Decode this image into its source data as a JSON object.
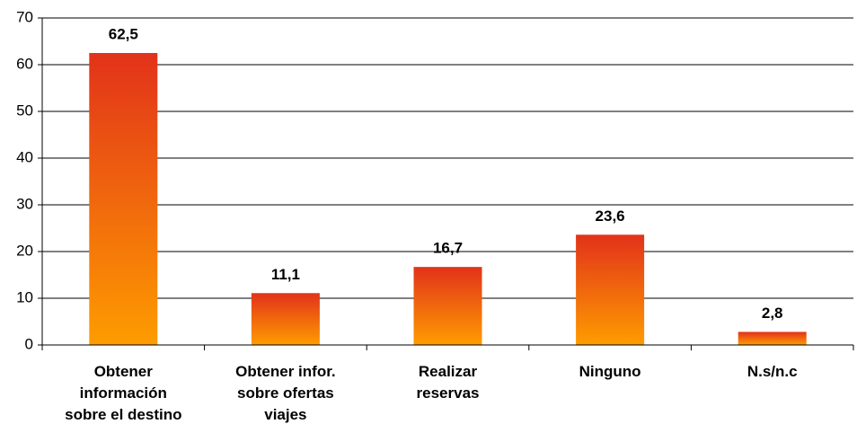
{
  "chart_data": {
    "type": "bar",
    "categories": [
      "Obtener\ninformación\nsobre el destino",
      "Obtener infor.\nsobre ofertas\nviajes",
      "Realizar\nreservas",
      "Ninguno",
      "N.s/n.c"
    ],
    "values": [
      62.5,
      11.1,
      16.7,
      23.6,
      2.8
    ],
    "value_labels": [
      "62,5",
      "11,1",
      "16,7",
      "23,6",
      "2,8"
    ],
    "gradient": [
      "#e2321a",
      "#fe9c00"
    ],
    "ylim": [
      0,
      70
    ],
    "yticks": [
      0,
      10,
      20,
      30,
      40,
      50,
      60,
      70
    ],
    "grid": true
  }
}
